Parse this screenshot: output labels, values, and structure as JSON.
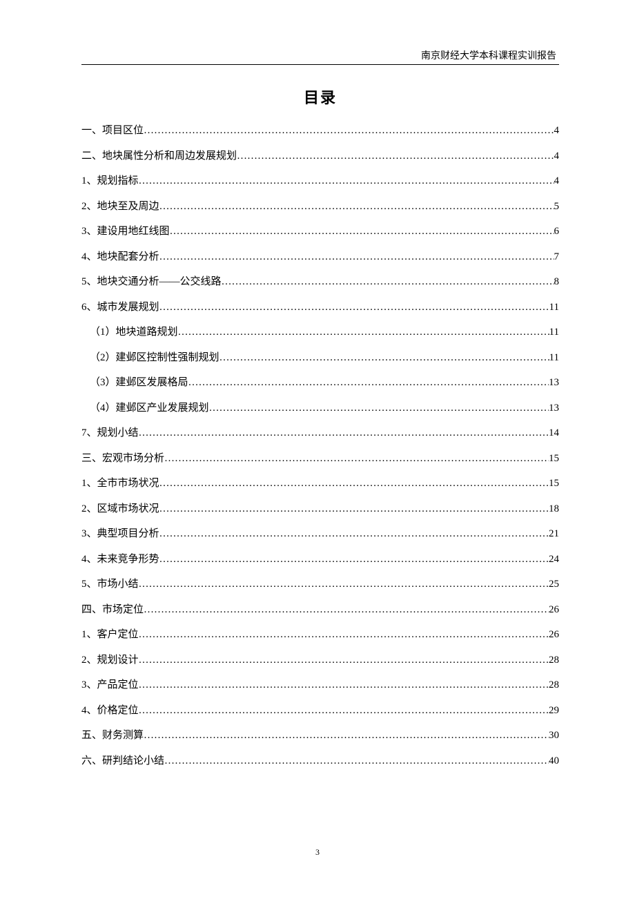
{
  "header": "南京财经大学本科课程实训报告",
  "title": "目录",
  "page_number": "3",
  "toc": [
    {
      "label": "一、项目区位",
      "page": "4",
      "indent": 0
    },
    {
      "label": "二、地块属性分析和周边发展规划",
      "page": "4",
      "indent": 0
    },
    {
      "label": "1、规划指标",
      "page": "4",
      "indent": 0
    },
    {
      "label": "2、地块至及周边",
      "page": "5",
      "indent": 0
    },
    {
      "label": "3、建设用地红线图",
      "page": "6",
      "indent": 0
    },
    {
      "label": "4、地块配套分析",
      "page": "7",
      "indent": 0
    },
    {
      "label": "5、地块交通分析——公交线路",
      "page": "8",
      "indent": 0
    },
    {
      "label": "6、城市发展规划",
      "page": "11",
      "indent": 0
    },
    {
      "label": "（1）地块道路规划",
      "page": "11",
      "indent": 1
    },
    {
      "label": "（2）建邺区控制性强制规划",
      "page": "11",
      "indent": 1
    },
    {
      "label": "（3）建邺区发展格局",
      "page": "13",
      "indent": 1
    },
    {
      "label": "（4）建邺区产业发展规划",
      "page": "13",
      "indent": 1
    },
    {
      "label": "7、规划小结",
      "page": "14",
      "indent": 0
    },
    {
      "label": "三、宏观市场分析",
      "page": "15",
      "indent": 0
    },
    {
      "label": "1、全市市场状况",
      "page": "15",
      "indent": 0
    },
    {
      "label": "2、区域市场状况",
      "page": "18",
      "indent": 0
    },
    {
      "label": "3、典型项目分析",
      "page": "21",
      "indent": 0
    },
    {
      "label": "4、未来竞争形势",
      "page": "24",
      "indent": 0
    },
    {
      "label": "5、市场小结",
      "page": "25",
      "indent": 0
    },
    {
      "label": "四、市场定位",
      "page": "26",
      "indent": 0
    },
    {
      "label": "1、客户定位",
      "page": "26",
      "indent": 0
    },
    {
      "label": "2、规划设计",
      "page": "28",
      "indent": 0
    },
    {
      "label": "3、产品定位",
      "page": "28",
      "indent": 0
    },
    {
      "label": "4、价格定位",
      "page": "29",
      "indent": 0
    },
    {
      "label": "五、财务测算",
      "page": "30",
      "indent": 0
    },
    {
      "label": "六、研判结论小结",
      "page": "40",
      "indent": 0
    }
  ]
}
